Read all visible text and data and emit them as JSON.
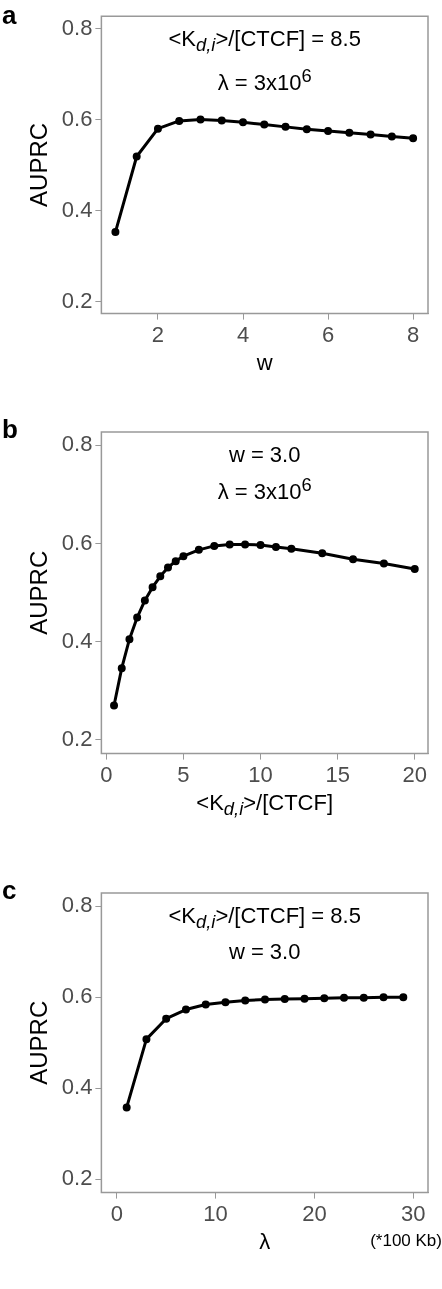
{
  "chart_data": [
    {
      "type": "line",
      "title": "a",
      "subtitle": "<K$_{d,i}$>/[CTCF] = 8.5\nλ = 3x10$^{6}$",
      "xlabel": "w",
      "ylabel": "AUPRC",
      "x": [
        1,
        1.5,
        2,
        2.5,
        3,
        3.5,
        4,
        4.5,
        5,
        5.5,
        6,
        6.5,
        7,
        7.5,
        8
      ],
      "series": [
        {
          "color": "#000000",
          "values": [
            0.353,
            0.519,
            0.58,
            0.597,
            0.6,
            0.598,
            0.594,
            0.589,
            0.584,
            0.579,
            0.575,
            0.571,
            0.567,
            0.563,
            0.559
          ]
        }
      ],
      "xlim": [
        0.67,
        8.35
      ],
      "ylim": [
        0.174,
        0.827
      ],
      "xticks": [
        2,
        4,
        6,
        8
      ],
      "yticks": [
        0.2,
        0.4,
        0.6,
        0.8
      ],
      "grid": false,
      "legend": false,
      "marker": "circle",
      "line_style": "solid"
    },
    {
      "type": "line",
      "title": "b",
      "subtitle": "w = 3.0\nλ = 3x10$^{6}$",
      "xlabel": "<K$_{d,i}$>/[CTCF]",
      "ylabel": "AUPRC",
      "x": [
        0.5,
        1,
        1.5,
        2,
        2.5,
        3,
        3.5,
        4,
        4.5,
        5,
        6,
        7,
        8,
        9,
        10,
        11,
        12,
        14,
        16,
        18,
        20
      ],
      "series": [
        {
          "color": "#000000",
          "values": [
            0.27,
            0.346,
            0.405,
            0.449,
            0.484,
            0.511,
            0.533,
            0.551,
            0.564,
            0.574,
            0.587,
            0.595,
            0.598,
            0.598,
            0.597,
            0.593,
            0.589,
            0.58,
            0.568,
            0.559,
            0.548
          ]
        }
      ],
      "xlim": [
        -0.32,
        20.86
      ],
      "ylim": [
        0.172,
        0.827
      ],
      "xticks": [
        0,
        5,
        10,
        15,
        20
      ],
      "yticks": [
        0.2,
        0.4,
        0.6,
        0.8
      ],
      "grid": false,
      "legend": false,
      "marker": "circle",
      "line_style": "solid"
    },
    {
      "type": "line",
      "title": "c",
      "subtitle": "<K$_{d,i}$>/[CTCF] = 8.5\nw = 3.0",
      "xlabel": "λ",
      "ylabel": "AUPRC",
      "annotations": [
        "(*100 Kb)"
      ],
      "x": [
        1,
        3,
        5,
        7,
        9,
        11,
        13,
        15,
        17,
        19,
        21,
        23,
        25,
        27,
        29
      ],
      "series": [
        {
          "color": "#000000",
          "values": [
            0.358,
            0.508,
            0.553,
            0.573,
            0.584,
            0.589,
            0.593,
            0.595,
            0.596,
            0.597,
            0.598,
            0.599,
            0.599,
            0.6,
            0.6
          ]
        }
      ],
      "xlim": [
        -1.56,
        31.5
      ],
      "ylim": [
        0.171,
        0.829
      ],
      "xticks": [
        0,
        10,
        20,
        30
      ],
      "yticks": [
        0.2,
        0.4,
        0.6,
        0.8
      ],
      "grid": false,
      "legend": false,
      "marker": "circle",
      "line_style": "solid"
    }
  ]
}
